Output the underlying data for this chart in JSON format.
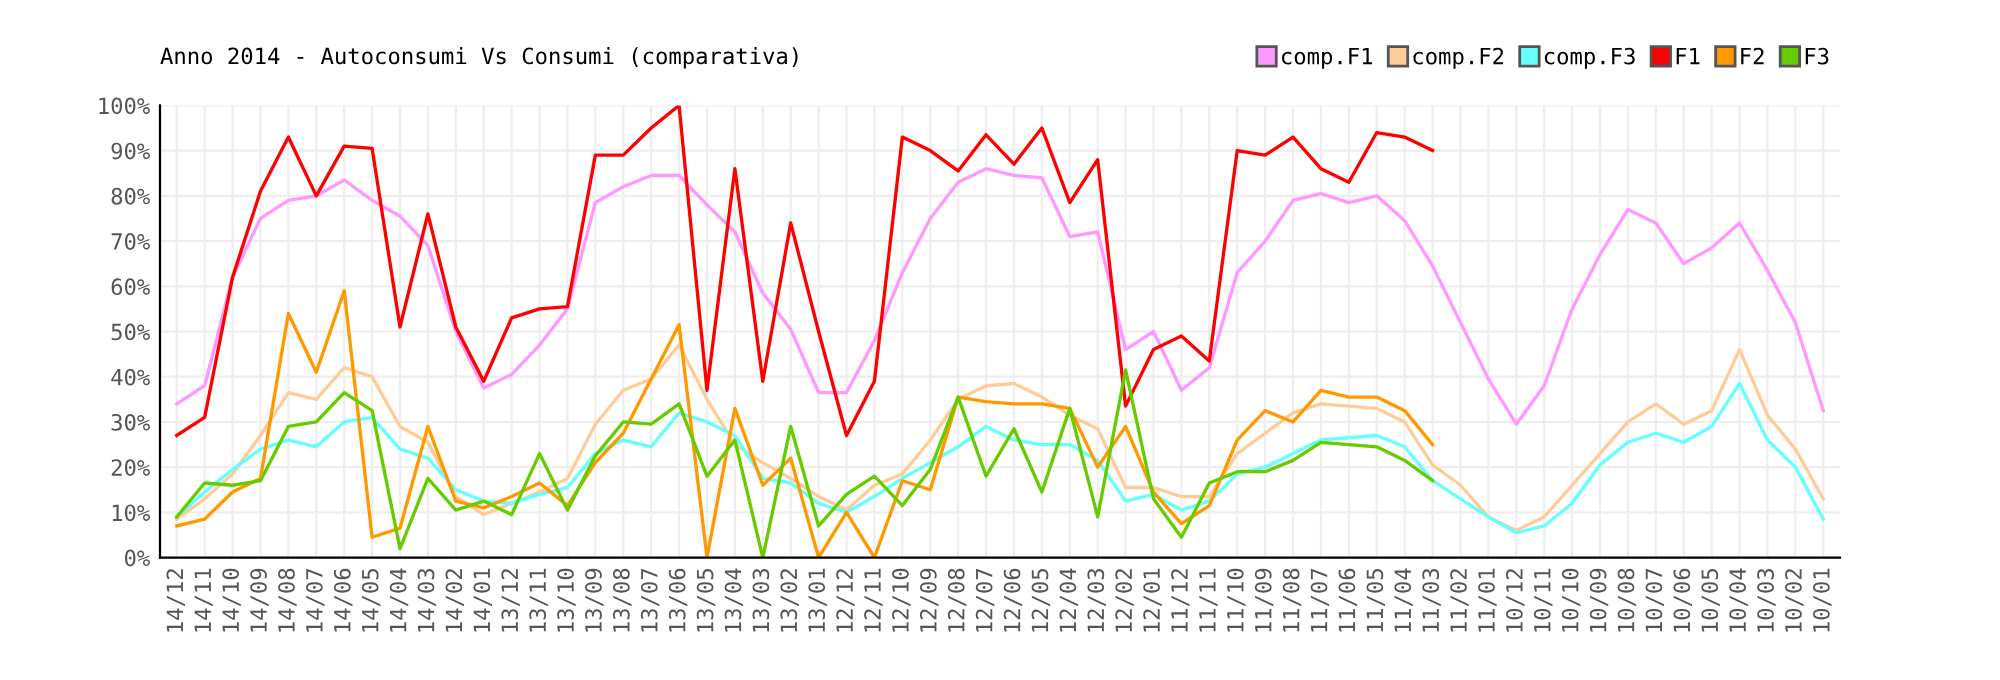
{
  "chart_data": {
    "type": "line",
    "title": "Anno 2014 - Autoconsumi Vs Consumi (comparativa)",
    "categories": [
      "14/12",
      "14/11",
      "14/10",
      "14/09",
      "14/08",
      "14/07",
      "14/06",
      "14/05",
      "14/04",
      "14/03",
      "14/02",
      "14/01",
      "13/12",
      "13/11",
      "13/10",
      "13/09",
      "13/08",
      "13/07",
      "13/06",
      "13/05",
      "13/04",
      "13/03",
      "13/02",
      "13/01",
      "12/12",
      "12/11",
      "12/10",
      "12/09",
      "12/08",
      "12/07",
      "12/06",
      "12/05",
      "12/04",
      "12/03",
      "12/02",
      "12/01",
      "11/12",
      "11/11",
      "11/10",
      "11/09",
      "11/08",
      "11/07",
      "11/06",
      "11/05",
      "11/04",
      "11/03",
      "11/02",
      "11/01",
      "10/12",
      "10/11",
      "10/10",
      "10/09",
      "10/08",
      "10/07",
      "10/06",
      "10/05",
      "10/04",
      "10/03",
      "10/02",
      "10/01"
    ],
    "series": [
      {
        "name": "comp.F1",
        "color": "#ff99ff",
        "values": [
          34,
          38,
          62,
          75,
          79,
          80,
          83.5,
          79,
          75.5,
          69,
          50,
          37.5,
          40.5,
          47,
          55,
          78.5,
          82,
          84.5,
          84.5,
          78,
          72,
          58.5,
          50.5,
          36.5,
          36.5,
          48,
          63,
          75,
          83,
          86,
          84.5,
          84,
          71,
          72,
          46,
          50,
          37,
          42,
          63,
          70,
          79,
          80.5,
          78.5,
          80,
          74.5,
          64.5,
          52,
          39.5,
          29.5,
          38,
          55,
          67,
          77,
          74,
          65,
          68.5,
          74,
          63.5,
          52,
          32.5
        ]
      },
      {
        "name": "comp.F2",
        "color": "#ffcc99",
        "values": [
          8.5,
          13,
          18.5,
          27,
          36.5,
          35,
          42,
          40,
          29,
          25.5,
          13.5,
          9.5,
          12,
          14.5,
          17.5,
          29.5,
          37,
          39.5,
          47,
          35,
          25,
          21,
          17.5,
          13.5,
          10.5,
          16,
          18.5,
          26,
          35,
          38,
          38.5,
          35.5,
          31.5,
          28.5,
          15.5,
          15.5,
          13.5,
          13.5,
          23,
          27.5,
          32,
          34,
          33.5,
          33,
          30,
          20.5,
          16,
          9,
          6,
          9,
          16,
          23,
          30,
          34,
          29.5,
          32.5,
          46,
          31.5,
          24,
          13
        ]
      },
      {
        "name": "comp.F3",
        "color": "#66ffff",
        "values": [
          9,
          14.5,
          19.5,
          24,
          26,
          24.5,
          30,
          31,
          24,
          22,
          15,
          12.5,
          12,
          14,
          15.5,
          23,
          26,
          24.5,
          32,
          30,
          27,
          17.5,
          16.5,
          12,
          10,
          13.5,
          17.5,
          21,
          24.5,
          29,
          26,
          25,
          25,
          21.5,
          12.5,
          14,
          10.5,
          12.5,
          18.5,
          20,
          23,
          26,
          26.5,
          27,
          24.5,
          17,
          13,
          9,
          5.5,
          7,
          12,
          20.5,
          25.5,
          27.5,
          25.5,
          29,
          38.5,
          26,
          20,
          8.5
        ]
      },
      {
        "name": "F1",
        "color": "#ff0000",
        "values": [
          27,
          31,
          62,
          81,
          93,
          80,
          91,
          90.5,
          51,
          76,
          51,
          39,
          53,
          55,
          55.5,
          89,
          89,
          95,
          100,
          37,
          86,
          39,
          74,
          50,
          27,
          39,
          93,
          90,
          85.5,
          93.5,
          87,
          95,
          78.5,
          88,
          33.5,
          46,
          49,
          43.5,
          90,
          89,
          93,
          86,
          83,
          94,
          93,
          90,
          null,
          null,
          null,
          null,
          null,
          null,
          null,
          null,
          null,
          null,
          null,
          null,
          null,
          null
        ]
      },
      {
        "name": "F2",
        "color": "#ff9900",
        "values": [
          7,
          8.5,
          14.5,
          17.5,
          54,
          41,
          59,
          4.5,
          6.5,
          29,
          12.5,
          11,
          13.5,
          16.5,
          11.5,
          21,
          27.5,
          39.5,
          51.5,
          0,
          33,
          16,
          22,
          0,
          10,
          0,
          17,
          15,
          35.5,
          34.5,
          34,
          34,
          33,
          20,
          29,
          14.5,
          7.5,
          11.5,
          26,
          32.5,
          30,
          37,
          35.5,
          35.5,
          32.5,
          25,
          null,
          null,
          null,
          null,
          null,
          null,
          null,
          null,
          null,
          null,
          null,
          null,
          null,
          null
        ]
      },
      {
        "name": "F3",
        "color": "#66cc00",
        "values": [
          9,
          16.5,
          16,
          17,
          29,
          30,
          36.5,
          32.5,
          2,
          17.5,
          10.5,
          12.5,
          9.5,
          23,
          10.5,
          22.5,
          30,
          29.5,
          34,
          18,
          26,
          0,
          29,
          7,
          14,
          18,
          11.5,
          19.5,
          35.5,
          18,
          28.5,
          14.5,
          33,
          9,
          41.5,
          13,
          4.5,
          16.5,
          19,
          19,
          21.5,
          25.5,
          25,
          24.5,
          21.5,
          17,
          null,
          null,
          null,
          null,
          null,
          null,
          null,
          null,
          null,
          null,
          null,
          null,
          null,
          null
        ]
      }
    ],
    "ylim": [
      0,
      100
    ],
    "yticks": [
      {
        "value": 0,
        "label": "0%"
      },
      {
        "value": 10,
        "label": "10%"
      },
      {
        "value": 20,
        "label": "20%"
      },
      {
        "value": 30,
        "label": "30%"
      },
      {
        "value": 40,
        "label": "40%"
      },
      {
        "value": 50,
        "label": "50%"
      },
      {
        "value": 60,
        "label": "60%"
      },
      {
        "value": 70,
        "label": "70%"
      },
      {
        "value": 80,
        "label": "80%"
      },
      {
        "value": 90,
        "label": "90%"
      },
      {
        "value": 100,
        "label": "100%"
      }
    ],
    "grid": true,
    "legend": "top right",
    "marker": "none",
    "line_style": "solid"
  }
}
